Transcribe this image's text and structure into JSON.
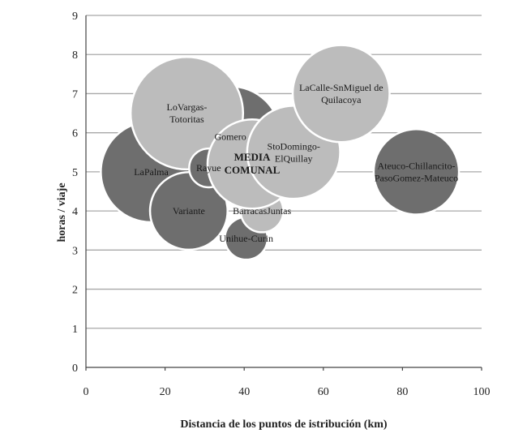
{
  "chart_data": {
    "type": "bubble",
    "title": "",
    "xlabel": "Distancia de los puntos de istribución (km)",
    "ylabel": "horas / viaje",
    "xlim": [
      0,
      100
    ],
    "ylim": [
      0,
      9
    ],
    "x_ticks": [
      "0",
      "20",
      "40",
      "60",
      "80",
      "100"
    ],
    "y_ticks": [
      "0",
      "1",
      "2",
      "3",
      "4",
      "5",
      "6",
      "7",
      "8",
      "9"
    ],
    "grid": "horizontal",
    "colors": {
      "dark": "#6e6e6e",
      "light": "#bcbcbc",
      "grid": "#a8a8a8"
    },
    "points": [
      {
        "x": 16.5,
        "y": 5.0,
        "r": 13.0,
        "shade": "dark",
        "label": [
          "LaPalma"
        ]
      },
      {
        "x": 36.5,
        "y": 5.9,
        "r": 13.0,
        "shade": "dark",
        "label": [
          "Gomero"
        ]
      },
      {
        "x": 25.5,
        "y": 6.5,
        "r": 14.5,
        "shade": "light",
        "label": [
          "LoVargas-",
          "Totoritas"
        ]
      },
      {
        "x": 26.0,
        "y": 4.0,
        "r": 10.0,
        "shade": "dark",
        "label": [
          "Variante"
        ]
      },
      {
        "x": 31.0,
        "y": 5.1,
        "r": 5.0,
        "shade": "dark",
        "label": [
          "Rayue"
        ]
      },
      {
        "x": 40.5,
        "y": 3.3,
        "r": 5.5,
        "shade": "dark",
        "label": [
          "Unihue-Curin"
        ]
      },
      {
        "x": 44.5,
        "y": 4.0,
        "r": 5.5,
        "shade": "light",
        "label": [
          "BarracasJuntas"
        ]
      },
      {
        "x": 42.0,
        "y": 5.2,
        "r": 11.5,
        "shade": "light",
        "label": [
          "MEDIA",
          "COMUNAL"
        ],
        "bold": true
      },
      {
        "x": 52.5,
        "y": 5.5,
        "r": 12.0,
        "shade": "light",
        "label": [
          "StoDomingo-",
          "ElQuillay"
        ]
      },
      {
        "x": 64.5,
        "y": 7.0,
        "r": 12.5,
        "shade": "light",
        "label": [
          "LaCalle-SnMiguel de",
          "Quilacoya"
        ]
      },
      {
        "x": 83.5,
        "y": 5.0,
        "r": 11.0,
        "shade": "dark",
        "label": [
          "Ateuco-Chillancito-",
          "PasoGomez-Mateuco"
        ]
      }
    ]
  }
}
